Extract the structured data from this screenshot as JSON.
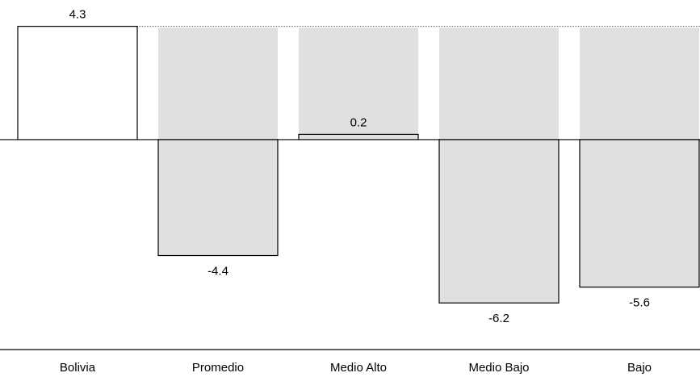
{
  "chart_data": {
    "type": "bar",
    "categories": [
      "Bolivia",
      "Promedio",
      "Medio Alto",
      "Medio Bajo",
      "Bajo"
    ],
    "values": [
      4.3,
      -4.4,
      0.2,
      -6.2,
      -5.6
    ],
    "colors": [
      "#ffffff",
      "#e0e0e0",
      "#e0e0e0",
      "#e0e0e0",
      "#e0e0e0"
    ],
    "ylim": [
      -8,
      5.3
    ]
  }
}
